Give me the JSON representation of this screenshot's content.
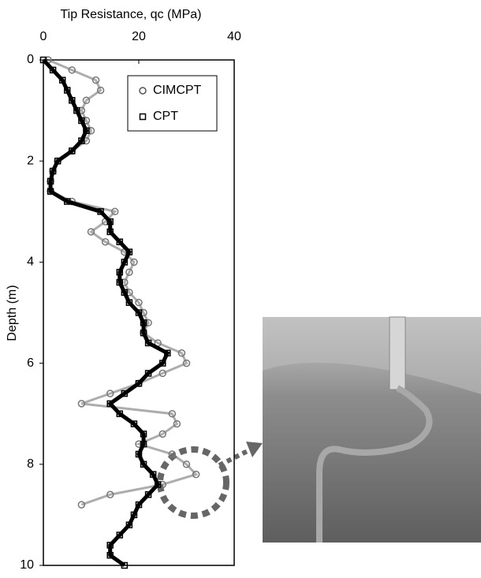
{
  "chart_data": {
    "type": "scatter",
    "x_label": "Tip Resistance, qc (MPa)",
    "y_label": "Depth (m)",
    "xlim": [
      0,
      40
    ],
    "xticks": [
      0,
      20,
      40
    ],
    "ylim": [
      0,
      10
    ],
    "yticks": [
      0,
      2,
      4,
      6,
      8,
      10
    ],
    "y_inverted": true,
    "legend": "top-right",
    "series": [
      {
        "name": "CIMCPT",
        "color": "#777777",
        "marker": "circle",
        "x": [
          1,
          6,
          11,
          12,
          9,
          8,
          9,
          10,
          9,
          6,
          3,
          2,
          1.5,
          1.5,
          6,
          15,
          13,
          10,
          13,
          17,
          19,
          18,
          17,
          18,
          20,
          21,
          22,
          21,
          24,
          29,
          30,
          25,
          20,
          14,
          8,
          27,
          28,
          25,
          20,
          27,
          30,
          32,
          25,
          14,
          8
        ],
        "values": [
          0,
          0.2,
          0.4,
          0.6,
          0.8,
          1.0,
          1.2,
          1.4,
          1.6,
          1.8,
          2.0,
          2.2,
          2.4,
          2.6,
          2.8,
          3.0,
          3.2,
          3.4,
          3.6,
          3.8,
          4.0,
          4.2,
          4.4,
          4.6,
          4.8,
          5.0,
          5.2,
          5.4,
          5.6,
          5.8,
          6.0,
          6.2,
          6.4,
          6.6,
          6.8,
          7.0,
          7.2,
          7.4,
          7.6,
          7.8,
          8.0,
          8.2,
          8.4,
          8.6,
          8.8
        ]
      },
      {
        "name": "CPT",
        "color": "#000000",
        "marker": "square",
        "x": [
          0,
          2,
          4,
          5,
          6,
          7,
          8,
          9,
          8,
          6,
          3,
          2,
          1.5,
          1.5,
          5,
          12,
          14,
          14,
          16,
          18,
          17,
          16,
          16,
          17,
          18,
          20,
          21,
          21,
          22,
          26,
          25,
          22,
          20,
          17,
          14,
          16,
          19,
          21,
          21,
          20,
          21,
          23,
          24,
          22,
          20,
          19,
          18,
          16,
          14,
          14,
          17
        ],
        "values": [
          0,
          0.2,
          0.4,
          0.6,
          0.8,
          1.0,
          1.2,
          1.4,
          1.6,
          1.8,
          2.0,
          2.2,
          2.4,
          2.6,
          2.8,
          3.0,
          3.2,
          3.4,
          3.6,
          3.8,
          4.0,
          4.2,
          4.4,
          4.6,
          4.8,
          5.0,
          5.2,
          5.4,
          5.6,
          5.8,
          6.0,
          6.2,
          6.4,
          6.6,
          6.8,
          7.0,
          7.2,
          7.4,
          7.6,
          7.8,
          8.0,
          8.2,
          8.4,
          8.6,
          8.8,
          9.0,
          9.2,
          9.4,
          9.6,
          9.8,
          10.0
        ]
      }
    ]
  }
}
